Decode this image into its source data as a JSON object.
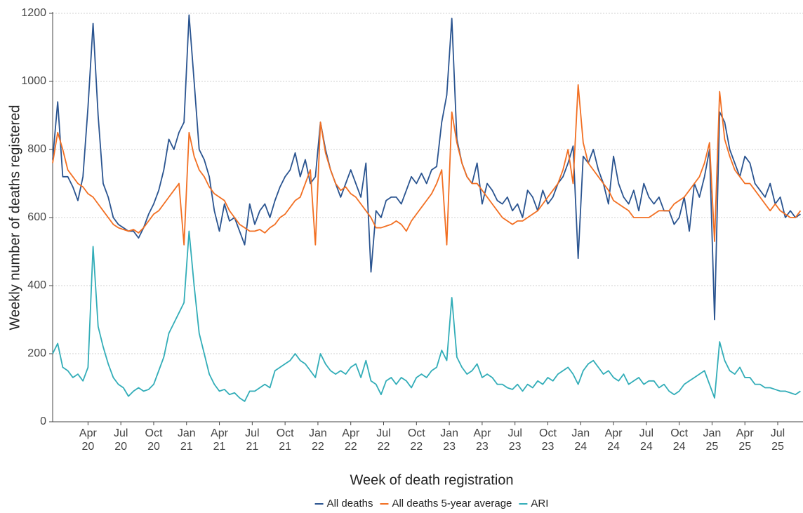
{
  "chart_data": {
    "type": "line",
    "x_label": "Week of death registration",
    "y_label": "Weekly number of deaths registered",
    "xlim": [
      0,
      297
    ],
    "ylim": [
      0,
      1200
    ],
    "yticks": [
      0,
      200,
      400,
      600,
      800,
      1000,
      1200
    ],
    "xticks": [
      {
        "value": 14,
        "label": [
          "Apr",
          "20"
        ]
      },
      {
        "value": 27,
        "label": [
          "Jul",
          "20"
        ]
      },
      {
        "value": 40,
        "label": [
          "Oct",
          "20"
        ]
      },
      {
        "value": 53,
        "label": [
          "Jan",
          "21"
        ]
      },
      {
        "value": 66,
        "label": [
          "Apr",
          "21"
        ]
      },
      {
        "value": 79,
        "label": [
          "Jul",
          "21"
        ]
      },
      {
        "value": 92,
        "label": [
          "Oct",
          "21"
        ]
      },
      {
        "value": 105,
        "label": [
          "Jan",
          "22"
        ]
      },
      {
        "value": 118,
        "label": [
          "Apr",
          "22"
        ]
      },
      {
        "value": 131,
        "label": [
          "Jul",
          "22"
        ]
      },
      {
        "value": 144,
        "label": [
          "Oct",
          "22"
        ]
      },
      {
        "value": 157,
        "label": [
          "Jan",
          "23"
        ]
      },
      {
        "value": 170,
        "label": [
          "Apr",
          "23"
        ]
      },
      {
        "value": 183,
        "label": [
          "Jul",
          "23"
        ]
      },
      {
        "value": 196,
        "label": [
          "Oct",
          "23"
        ]
      },
      {
        "value": 209,
        "label": [
          "Jan",
          "24"
        ]
      },
      {
        "value": 222,
        "label": [
          "Apr",
          "24"
        ]
      },
      {
        "value": 235,
        "label": [
          "Jul",
          "24"
        ]
      },
      {
        "value": 248,
        "label": [
          "Oct",
          "24"
        ]
      },
      {
        "value": 261,
        "label": [
          "Jan",
          "25"
        ]
      },
      {
        "value": 274,
        "label": [
          "Apr",
          "25"
        ]
      },
      {
        "value": 287,
        "label": [
          "Jul",
          "25"
        ]
      }
    ],
    "grid": true,
    "legend": "bottom",
    "x": [
      0,
      2,
      4,
      6,
      8,
      10,
      12,
      14,
      16,
      18,
      20,
      22,
      24,
      26,
      28,
      30,
      32,
      34,
      36,
      38,
      40,
      42,
      44,
      46,
      48,
      50,
      52,
      54,
      56,
      58,
      60,
      62,
      64,
      66,
      68,
      70,
      72,
      74,
      76,
      78,
      80,
      82,
      84,
      86,
      88,
      90,
      92,
      94,
      96,
      98,
      100,
      102,
      104,
      106,
      108,
      110,
      112,
      114,
      116,
      118,
      120,
      122,
      124,
      126,
      128,
      130,
      132,
      134,
      136,
      138,
      140,
      142,
      144,
      146,
      148,
      150,
      152,
      154,
      156,
      158,
      160,
      162,
      164,
      166,
      168,
      170,
      172,
      174,
      176,
      178,
      180,
      182,
      184,
      186,
      188,
      190,
      192,
      194,
      196,
      198,
      200,
      202,
      204,
      206,
      208,
      210,
      212,
      214,
      216,
      218,
      220,
      222,
      224,
      226,
      228,
      230,
      232,
      234,
      236,
      238,
      240,
      242,
      244,
      246,
      248,
      250,
      252,
      254,
      256,
      258,
      260,
      262,
      264,
      266,
      268,
      270,
      272,
      274,
      276,
      278,
      280,
      282,
      284,
      286,
      288,
      290,
      292,
      294,
      296
    ],
    "series": [
      {
        "name": "All deaths",
        "color": "#2a5490",
        "values": [
          770,
          940,
          720,
          720,
          690,
          650,
          720,
          925,
          1170,
          900,
          700,
          660,
          600,
          580,
          570,
          560,
          560,
          540,
          570,
          610,
          640,
          680,
          740,
          830,
          800,
          850,
          880,
          1195,
          1000,
          800,
          770,
          720,
          620,
          560,
          640,
          590,
          600,
          560,
          520,
          640,
          580,
          620,
          640,
          600,
          650,
          690,
          720,
          740,
          790,
          720,
          770,
          700,
          720,
          880,
          800,
          740,
          700,
          660,
          700,
          740,
          700,
          660,
          760,
          440,
          620,
          600,
          650,
          660,
          660,
          640,
          680,
          720,
          700,
          730,
          700,
          740,
          750,
          880,
          960,
          1185,
          830,
          760,
          720,
          700,
          760,
          640,
          700,
          680,
          650,
          640,
          660,
          620,
          640,
          600,
          680,
          660,
          620,
          680,
          640,
          660,
          700,
          720,
          760,
          810,
          480,
          780,
          760,
          800,
          740,
          700,
          640,
          780,
          700,
          660,
          640,
          680,
          620,
          700,
          660,
          640,
          660,
          620,
          620,
          580,
          600,
          660,
          560,
          700,
          660,
          720,
          800,
          300,
          910,
          880,
          800,
          760,
          720,
          780,
          760,
          700,
          680,
          660,
          700,
          640,
          660,
          600,
          620,
          600,
          610
        ]
      },
      {
        "name": "All deaths 5-year average",
        "color": "#f26f22",
        "values": [
          760,
          850,
          800,
          740,
          720,
          700,
          690,
          670,
          660,
          640,
          620,
          600,
          580,
          570,
          565,
          560,
          565,
          555,
          570,
          590,
          610,
          620,
          640,
          660,
          680,
          700,
          520,
          850,
          780,
          740,
          720,
          690,
          670,
          660,
          650,
          620,
          600,
          580,
          570,
          560,
          560,
          565,
          555,
          570,
          580,
          600,
          610,
          630,
          650,
          660,
          700,
          740,
          520,
          880,
          790,
          740,
          700,
          680,
          690,
          670,
          660,
          640,
          620,
          600,
          570,
          570,
          575,
          580,
          590,
          580,
          560,
          590,
          610,
          630,
          650,
          670,
          700,
          740,
          520,
          910,
          820,
          760,
          720,
          700,
          700,
          680,
          660,
          640,
          620,
          600,
          590,
          580,
          590,
          590,
          600,
          610,
          620,
          640,
          660,
          680,
          700,
          740,
          800,
          700,
          990,
          820,
          760,
          740,
          720,
          700,
          680,
          650,
          640,
          630,
          620,
          600,
          600,
          600,
          600,
          610,
          620,
          620,
          620,
          640,
          650,
          660,
          680,
          700,
          720,
          760,
          820,
          530,
          970,
          830,
          780,
          740,
          720,
          700,
          700,
          680,
          660,
          640,
          620,
          640,
          620,
          610,
          600,
          600,
          620
        ]
      },
      {
        "name": "ARI",
        "color": "#32adb8",
        "values": [
          200,
          230,
          160,
          150,
          130,
          140,
          120,
          160,
          515,
          280,
          220,
          170,
          130,
          110,
          100,
          75,
          90,
          100,
          90,
          95,
          110,
          150,
          190,
          260,
          290,
          320,
          350,
          560,
          400,
          260,
          200,
          140,
          110,
          90,
          95,
          80,
          85,
          70,
          60,
          90,
          90,
          100,
          110,
          100,
          150,
          160,
          170,
          180,
          200,
          180,
          170,
          150,
          130,
          200,
          170,
          150,
          140,
          150,
          140,
          160,
          170,
          130,
          180,
          120,
          110,
          80,
          120,
          130,
          110,
          130,
          120,
          100,
          130,
          140,
          130,
          150,
          160,
          210,
          180,
          365,
          190,
          160,
          140,
          150,
          170,
          130,
          140,
          130,
          110,
          110,
          100,
          95,
          110,
          90,
          110,
          100,
          120,
          110,
          130,
          120,
          140,
          150,
          160,
          140,
          110,
          150,
          170,
          180,
          160,
          140,
          150,
          130,
          120,
          140,
          110,
          120,
          130,
          110,
          120,
          120,
          100,
          110,
          90,
          80,
          90,
          110,
          120,
          130,
          140,
          150,
          110,
          70,
          235,
          180,
          150,
          140,
          160,
          130,
          130,
          110,
          110,
          100,
          100,
          95,
          90,
          90,
          85,
          80,
          90
        ]
      }
    ]
  }
}
